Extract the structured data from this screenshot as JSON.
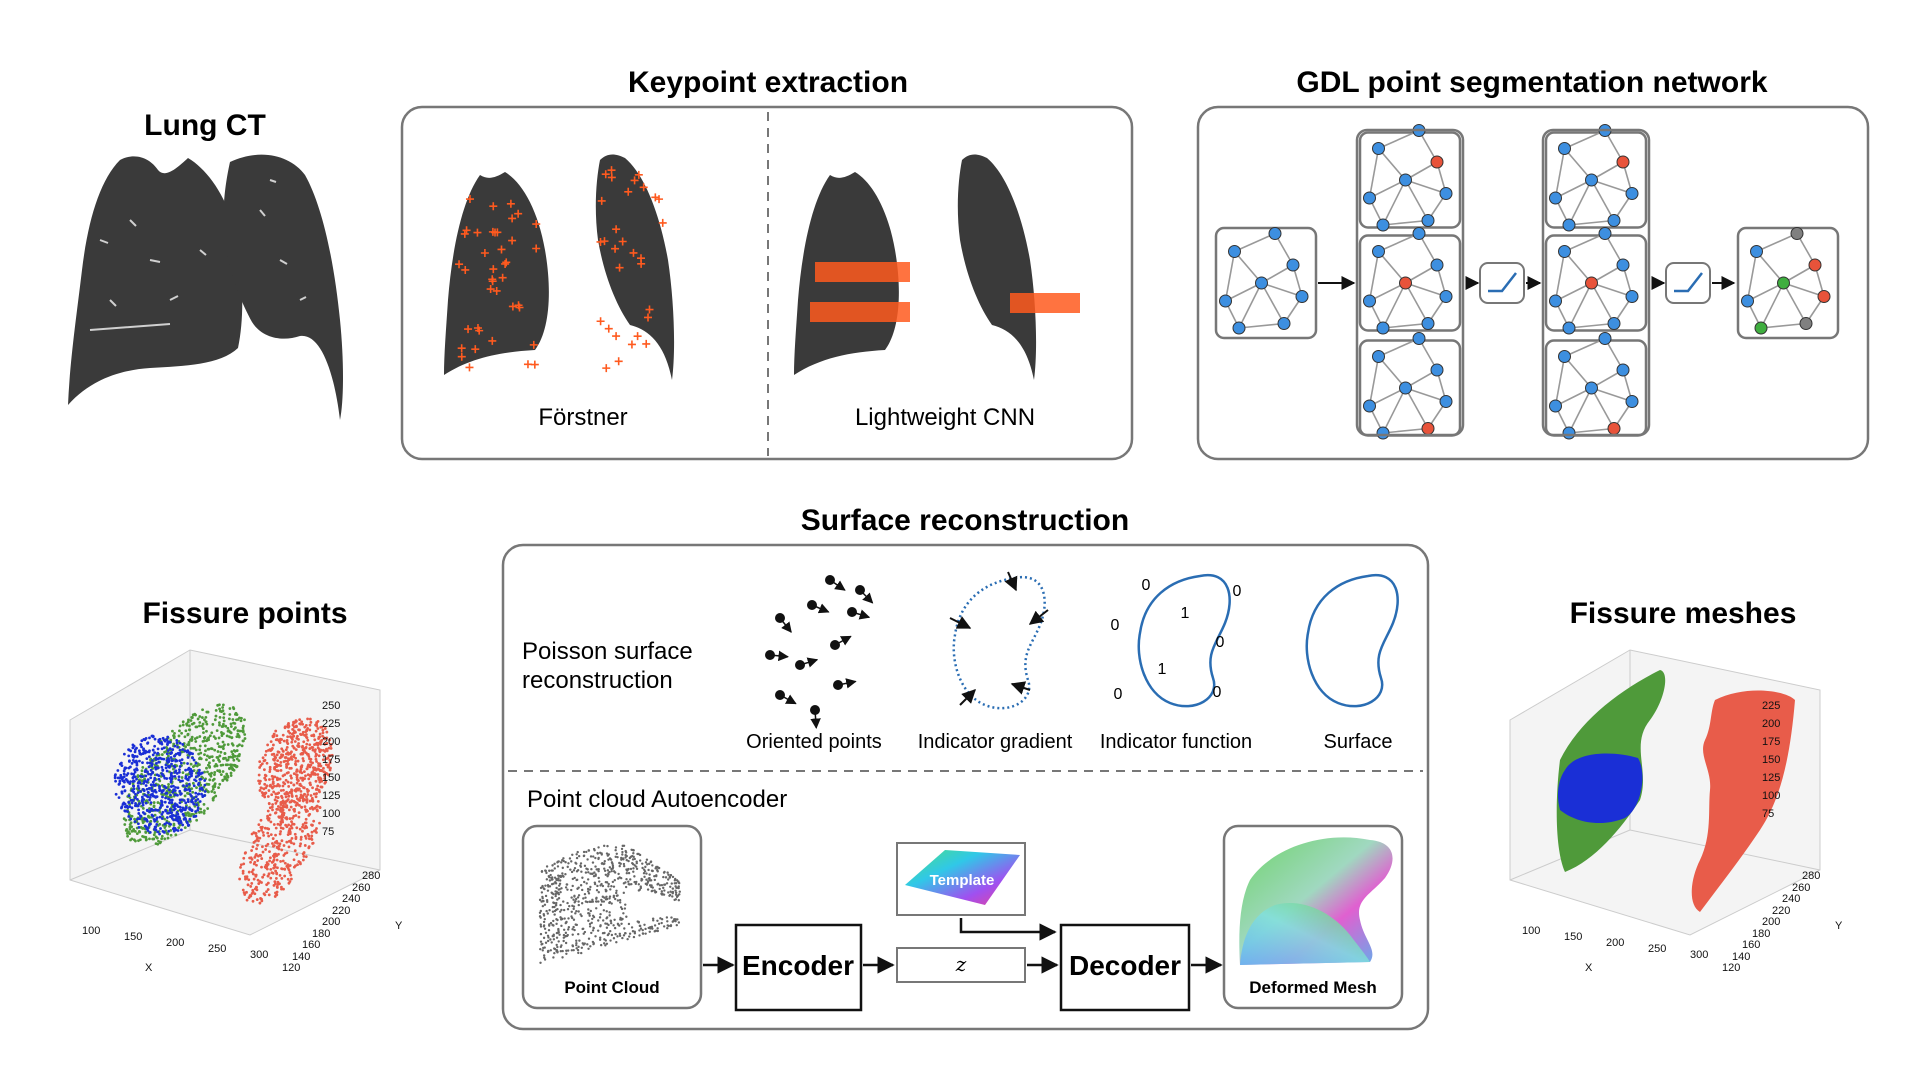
{
  "titles": {
    "lung_ct": "Lung CT",
    "keypoint": "Keypoint extraction",
    "gdl": "GDL point segmentation network",
    "surface": "Surface reconstruction",
    "fissure_points": "Fissure points",
    "fissure_meshes": "Fissure meshes"
  },
  "keypoint": {
    "left_label": "Förstner",
    "right_label": "Lightweight CNN"
  },
  "poisson": {
    "label_line1": "Poisson surface",
    "label_line2": "reconstruction",
    "steps": [
      "Oriented points",
      "Indicator gradient",
      "Indicator function",
      "Surface"
    ],
    "indicator_values": [
      "0",
      "0",
      "1",
      "0",
      "0",
      "1",
      "0",
      "0"
    ]
  },
  "autoencoder": {
    "label": "Point cloud Autoencoder",
    "point_cloud": "Point Cloud",
    "encoder": "Encoder",
    "template": "Template",
    "latent": "z",
    "decoder": "Decoder",
    "deformed_mesh": "Deformed Mesh"
  },
  "plot_left": {
    "z_ticks": [
      "250",
      "225",
      "200",
      "175",
      "150",
      "125",
      "100",
      "75"
    ],
    "x_ticks": [
      "100",
      "150",
      "200",
      "250",
      "300"
    ],
    "y_ticks": [
      "280",
      "260",
      "240",
      "220",
      "200",
      "180",
      "160",
      "140",
      "120"
    ],
    "x_label": "X",
    "y_label": "Y"
  },
  "plot_right": {
    "z_ticks": [
      "225",
      "200",
      "175",
      "150",
      "125",
      "100",
      "75"
    ],
    "x_ticks": [
      "100",
      "150",
      "200",
      "250",
      "300"
    ],
    "y_ticks": [
      "280",
      "260",
      "240",
      "220",
      "200",
      "180",
      "160",
      "140",
      "120"
    ],
    "x_label": "X",
    "y_label": "Y"
  },
  "colors": {
    "node_blue": "#3d8fe0",
    "node_red": "#e8533a",
    "node_green": "#3fae3f",
    "node_gray": "#808080",
    "fissure_blue": "#1a2fd6",
    "fissure_green": "#4f9a3a",
    "fissure_red": "#e85c4a",
    "keypoint_orange": "#ff5a1f",
    "curve_blue": "#2a6db3"
  }
}
